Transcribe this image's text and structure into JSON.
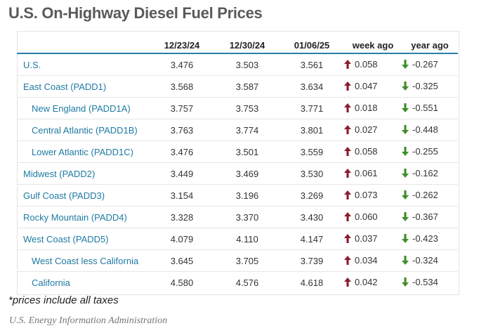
{
  "title": "U.S. On-Highway Diesel Fuel Prices",
  "table": {
    "columns": [
      "",
      "12/23/24",
      "12/30/24",
      "01/06/25",
      "week ago",
      "year ago"
    ],
    "rows": [
      {
        "region": "U.S.",
        "sub": false,
        "v1": "3.476",
        "v2": "3.503",
        "v3": "3.561",
        "week": "0.058",
        "week_dir": "up",
        "year": "-0.267",
        "year_dir": "down"
      },
      {
        "region": "East Coast (PADD1)",
        "sub": false,
        "v1": "3.568",
        "v2": "3.587",
        "v3": "3.634",
        "week": "0.047",
        "week_dir": "up",
        "year": "-0.325",
        "year_dir": "down"
      },
      {
        "region": "New England (PADD1A)",
        "sub": true,
        "v1": "3.757",
        "v2": "3.753",
        "v3": "3.771",
        "week": "0.018",
        "week_dir": "up",
        "year": "-0.551",
        "year_dir": "down"
      },
      {
        "region": "Central Atlantic (PADD1B)",
        "sub": true,
        "v1": "3.763",
        "v2": "3.774",
        "v3": "3.801",
        "week": "0.027",
        "week_dir": "up",
        "year": "-0.448",
        "year_dir": "down"
      },
      {
        "region": "Lower Atlantic (PADD1C)",
        "sub": true,
        "v1": "3.476",
        "v2": "3.501",
        "v3": "3.559",
        "week": "0.058",
        "week_dir": "up",
        "year": "-0.255",
        "year_dir": "down"
      },
      {
        "region": "Midwest (PADD2)",
        "sub": false,
        "v1": "3.449",
        "v2": "3.469",
        "v3": "3.530",
        "week": "0.061",
        "week_dir": "up",
        "year": "-0.162",
        "year_dir": "down"
      },
      {
        "region": "Gulf Coast (PADD3)",
        "sub": false,
        "v1": "3.154",
        "v2": "3.196",
        "v3": "3.269",
        "week": "0.073",
        "week_dir": "up",
        "year": "-0.262",
        "year_dir": "down"
      },
      {
        "region": "Rocky Mountain (PADD4)",
        "sub": false,
        "v1": "3.328",
        "v2": "3.370",
        "v3": "3.430",
        "week": "0.060",
        "week_dir": "up",
        "year": "-0.367",
        "year_dir": "down"
      },
      {
        "region": "West Coast (PADD5)",
        "sub": false,
        "v1": "4.079",
        "v2": "4.110",
        "v3": "4.147",
        "week": "0.037",
        "week_dir": "up",
        "year": "-0.423",
        "year_dir": "down"
      },
      {
        "region": "West Coast less California",
        "sub": true,
        "v1": "3.645",
        "v2": "3.705",
        "v3": "3.739",
        "week": "0.034",
        "week_dir": "up",
        "year": "-0.324",
        "year_dir": "down"
      },
      {
        "region": "California",
        "sub": true,
        "v1": "4.580",
        "v2": "4.576",
        "v3": "4.618",
        "week": "0.042",
        "week_dir": "up",
        "year": "-0.534",
        "year_dir": "down"
      }
    ]
  },
  "note": "*prices include all taxes",
  "source": "U.S. Energy Information Administration",
  "colors": {
    "region_text": "#1e7aa3",
    "header_rule": "#2a7fa8",
    "up_arrow": "#8b1e2d",
    "down_arrow": "#3f8f2a"
  },
  "icons": {
    "up": "arrow-up-icon",
    "down": "arrow-down-icon"
  }
}
